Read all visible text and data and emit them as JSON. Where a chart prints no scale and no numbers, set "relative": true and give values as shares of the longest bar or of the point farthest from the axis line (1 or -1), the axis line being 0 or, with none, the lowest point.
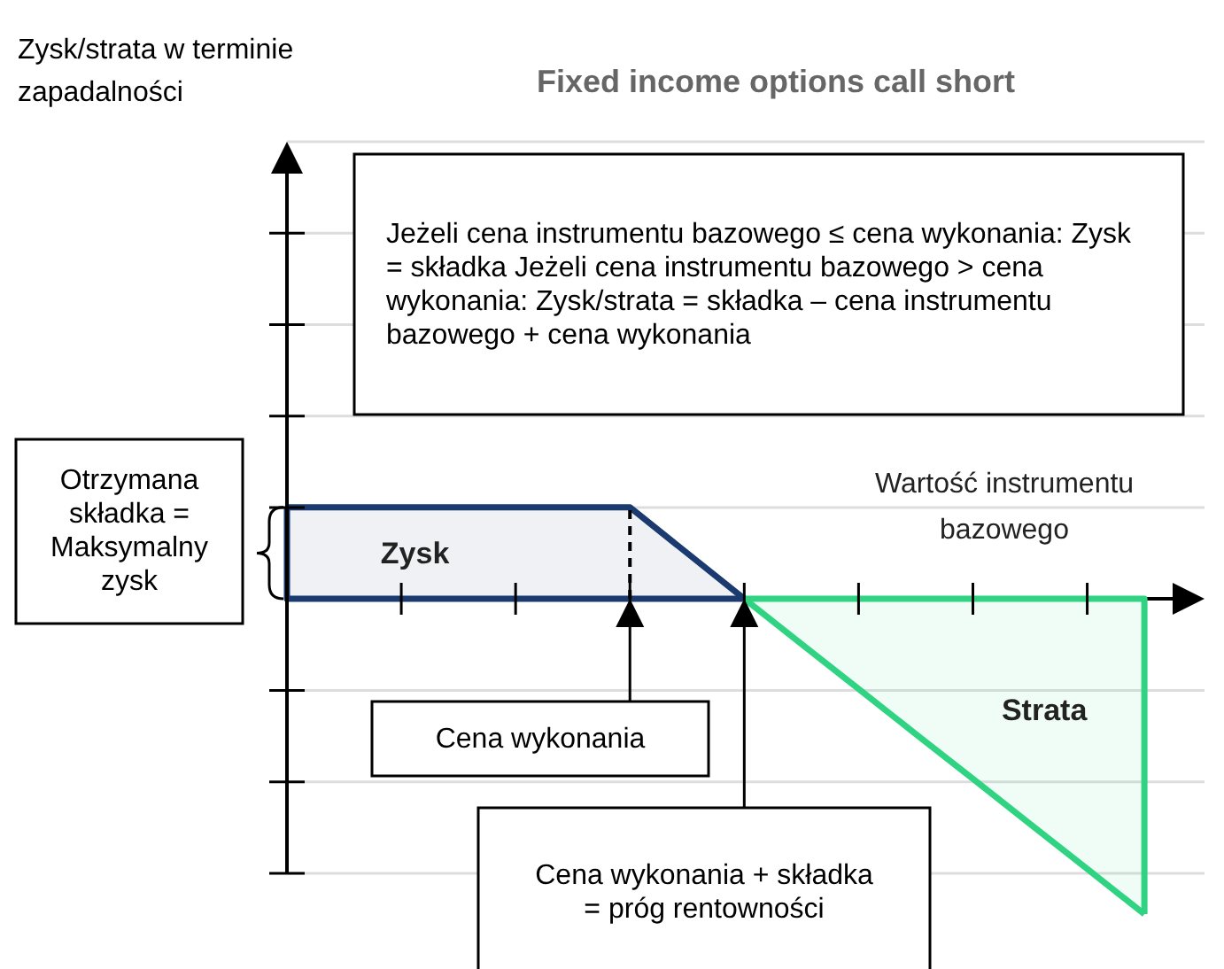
{
  "chart_data": {
    "type": "area",
    "title": "Fixed income options call short",
    "xlabel": "Wartość instrumentu bazowego",
    "relative": true,
    "grid": "y",
    "categories": [
      null,
      null,
      null,
      null,
      null,
      null,
      null,
      null,
      null,
      null,
      null,
      null,
      null,
      null,
      null,
      null
    ],
    "series": [
      {
        "name": "Zysk",
        "color": "#1b3a70",
        "values": [
          0.29,
          0.29,
          0.29,
          0.29,
          0.29,
          0.29,
          0.29,
          0.145,
          0,
          null,
          null,
          null,
          null,
          null,
          null,
          null
        ]
      },
      {
        "name": "Strata",
        "color": "#2fd382",
        "values": [
          null,
          null,
          null,
          null,
          null,
          null,
          null,
          null,
          0,
          -0.143,
          -0.286,
          -0.429,
          -0.571,
          -0.714,
          -0.857,
          -1
        ]
      }
    ],
    "annotations": [
      "Jeżeli cena instrumentu bazowego ≤ cena wykonania: Zysk = składka Jeżeli cena instrumentu bazowego > cena wykonania: Zysk/strata = składka – cena instrumentu bazowego + cena wykonania",
      "Otrzymana składka = Maksymalny zysk",
      "Cena wykonania",
      "Cena wykonania + składka = próg rentowności",
      "Zysk/strata w terminie zapadalności"
    ]
  }
}
